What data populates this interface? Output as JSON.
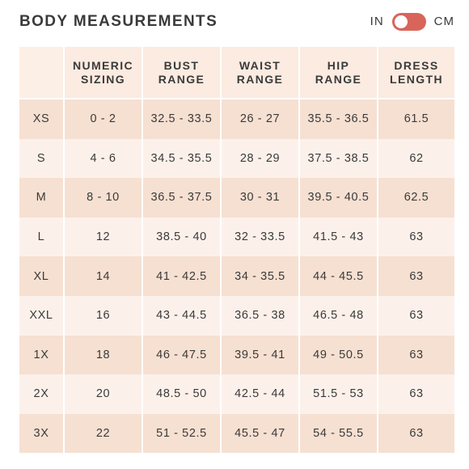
{
  "header": {
    "title": "BODY MEASUREMENTS",
    "unit_in": "IN",
    "unit_cm": "CM",
    "toggle_state": "IN",
    "toggle_color": "#d9655a"
  },
  "table": {
    "columns": [
      "",
      "NUMERIC SIZING",
      "BUST RANGE",
      "WAIST RANGE",
      "HIP RANGE",
      "DRESS LENGTH"
    ],
    "rows": [
      [
        "XS",
        "0 - 2",
        "32.5 - 33.5",
        "26 - 27",
        "35.5 - 36.5",
        "61.5"
      ],
      [
        "S",
        "4 - 6",
        "34.5 - 35.5",
        "28 - 29",
        "37.5 - 38.5",
        "62"
      ],
      [
        "M",
        "8 - 10",
        "36.5 - 37.5",
        "30 - 31",
        "39.5 - 40.5",
        "62.5"
      ],
      [
        "L",
        "12",
        "38.5 - 40",
        "32 - 33.5",
        "41.5 - 43",
        "63"
      ],
      [
        "XL",
        "14",
        "41 - 42.5",
        "34 - 35.5",
        "44 - 45.5",
        "63"
      ],
      [
        "XXL",
        "16",
        "43 - 44.5",
        "36.5 - 38",
        "46.5 - 48",
        "63"
      ],
      [
        "1X",
        "18",
        "46 - 47.5",
        "39.5 - 41",
        "49 - 50.5",
        "63"
      ],
      [
        "2X",
        "20",
        "48.5 - 50",
        "42.5 - 44",
        "51.5 - 53",
        "63"
      ],
      [
        "3X",
        "22",
        "51 - 52.5",
        "45.5 - 47",
        "54 - 55.5",
        "63"
      ]
    ]
  }
}
